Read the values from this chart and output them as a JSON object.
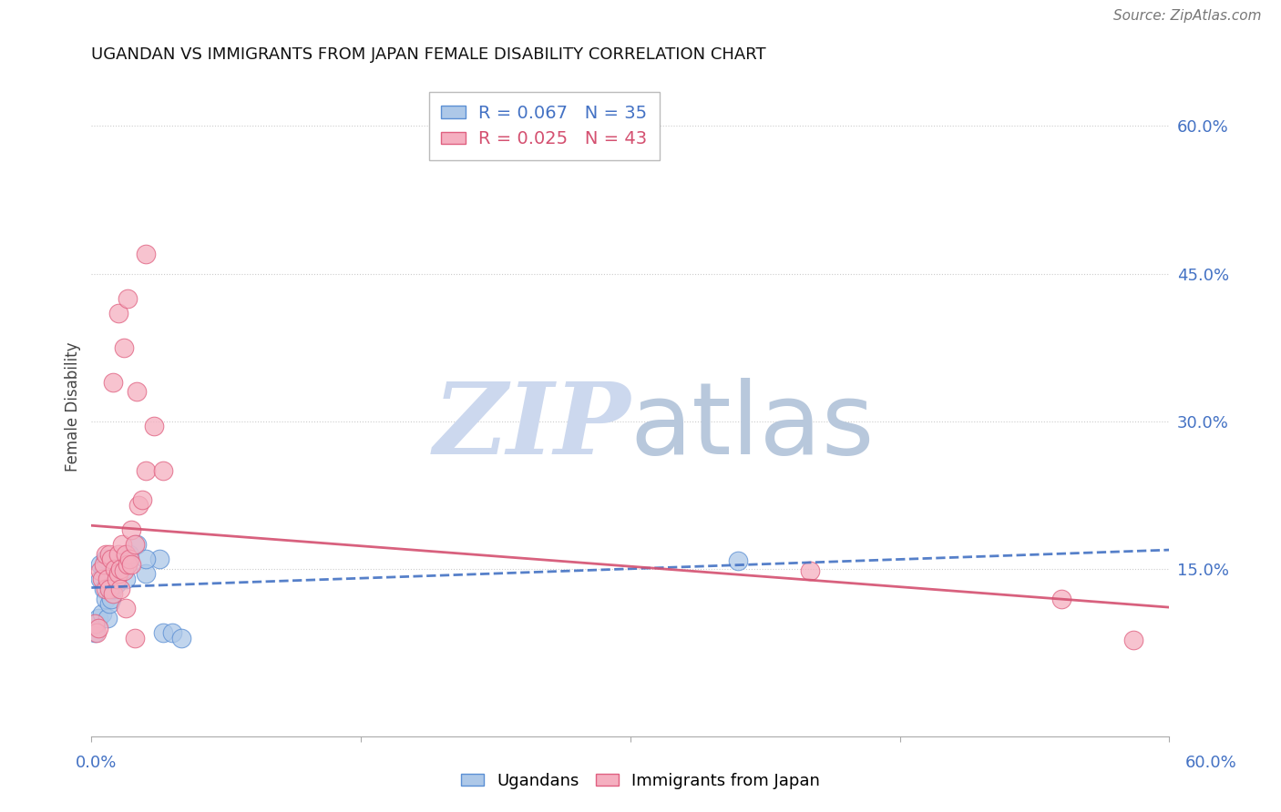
{
  "title": "UGANDAN VS IMMIGRANTS FROM JAPAN FEMALE DISABILITY CORRELATION CHART",
  "source": "Source: ZipAtlas.com",
  "ylabel": "Female Disability",
  "xlim": [
    0.0,
    0.6
  ],
  "ylim": [
    -0.02,
    0.65
  ],
  "ytick_vals": [
    0.0,
    0.15,
    0.3,
    0.45,
    0.6
  ],
  "ytick_labels": [
    "",
    "15.0%",
    "30.0%",
    "45.0%",
    "60.0%"
  ],
  "legend_R1": "R = 0.067",
  "legend_N1": "N = 35",
  "legend_R2": "R = 0.025",
  "legend_N2": "N = 43",
  "ugandan_color": "#adc8e8",
  "japan_color": "#f5afc0",
  "ugandan_edge_color": "#5b8fd4",
  "japan_edge_color": "#e06080",
  "ugandan_line_color": "#4472c4",
  "japan_line_color": "#d45070",
  "label_color": "#4472c4",
  "background_color": "#ffffff",
  "ugandan_x": [
    0.002,
    0.003,
    0.004,
    0.005,
    0.005,
    0.006,
    0.007,
    0.007,
    0.008,
    0.008,
    0.009,
    0.009,
    0.01,
    0.01,
    0.011,
    0.011,
    0.012,
    0.012,
    0.013,
    0.013,
    0.014,
    0.015,
    0.016,
    0.018,
    0.019,
    0.02,
    0.021,
    0.025,
    0.03,
    0.038,
    0.04,
    0.045,
    0.05,
    0.03,
    0.36
  ],
  "ugandan_y": [
    0.085,
    0.095,
    0.1,
    0.14,
    0.155,
    0.105,
    0.15,
    0.13,
    0.12,
    0.16,
    0.1,
    0.135,
    0.115,
    0.14,
    0.12,
    0.135,
    0.13,
    0.145,
    0.15,
    0.14,
    0.135,
    0.148,
    0.155,
    0.15,
    0.14,
    0.155,
    0.165,
    0.175,
    0.145,
    0.16,
    0.085,
    0.085,
    0.08,
    0.16,
    0.158
  ],
  "japan_x": [
    0.002,
    0.003,
    0.004,
    0.005,
    0.006,
    0.007,
    0.008,
    0.008,
    0.009,
    0.01,
    0.01,
    0.011,
    0.012,
    0.013,
    0.014,
    0.015,
    0.015,
    0.016,
    0.017,
    0.018,
    0.019,
    0.02,
    0.021,
    0.022,
    0.024,
    0.026,
    0.028,
    0.03,
    0.035,
    0.04,
    0.012,
    0.018,
    0.015,
    0.02,
    0.025,
    0.03,
    0.022,
    0.016,
    0.019,
    0.024,
    0.4,
    0.54,
    0.58
  ],
  "japan_y": [
    0.095,
    0.085,
    0.09,
    0.148,
    0.14,
    0.155,
    0.13,
    0.165,
    0.14,
    0.13,
    0.165,
    0.16,
    0.125,
    0.15,
    0.14,
    0.145,
    0.165,
    0.15,
    0.175,
    0.148,
    0.165,
    0.155,
    0.16,
    0.19,
    0.175,
    0.215,
    0.22,
    0.25,
    0.295,
    0.25,
    0.34,
    0.375,
    0.41,
    0.425,
    0.33,
    0.47,
    0.155,
    0.13,
    0.11,
    0.08,
    0.148,
    0.12,
    0.078
  ]
}
